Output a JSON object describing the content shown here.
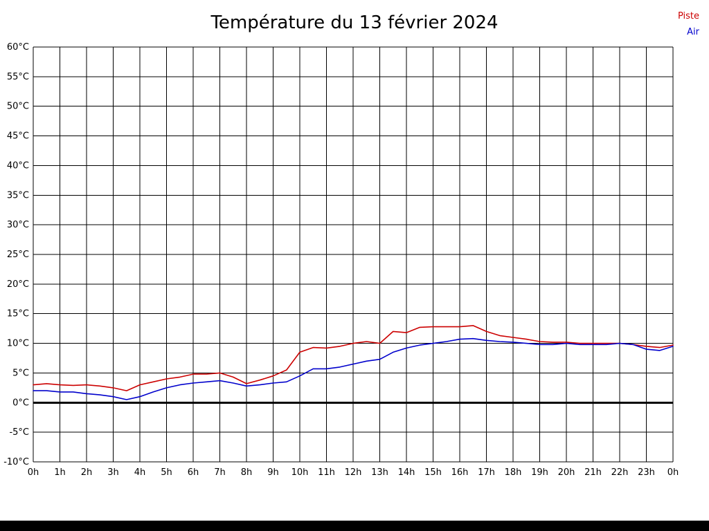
{
  "title": "Température du 13 février 2024",
  "legend": [
    {
      "label": "Piste",
      "color": "#cc0000"
    },
    {
      "label": "Air",
      "color": "#0000cc"
    }
  ],
  "chart_data": {
    "type": "line",
    "title": "Température du 13 février 2024",
    "xlabel": "",
    "ylabel": "",
    "x_unit": "hours",
    "xlim": [
      0,
      24
    ],
    "ylim": [
      -10,
      60
    ],
    "x_tick_step": 1,
    "y_tick_step": 5,
    "grid": true,
    "zero_line": true,
    "legend_position": "top-right",
    "x_tick_labels": [
      "0h",
      "1h",
      "2h",
      "3h",
      "4h",
      "5h",
      "6h",
      "7h",
      "8h",
      "9h",
      "10h",
      "11h",
      "12h",
      "13h",
      "14h",
      "15h",
      "16h",
      "17h",
      "18h",
      "19h",
      "20h",
      "21h",
      "22h",
      "23h",
      "0h"
    ],
    "y_tick_labels": [
      "60°C",
      "55°C",
      "50°C",
      "45°C",
      "40°C",
      "35°C",
      "30°C",
      "25°C",
      "20°C",
      "15°C",
      "10°C",
      "5°C",
      "0°C",
      "-5°C",
      "-10°C"
    ],
    "x": [
      0,
      0.5,
      1,
      1.5,
      2,
      2.5,
      3,
      3.5,
      4,
      4.5,
      5,
      5.5,
      6,
      6.5,
      7,
      7.5,
      8,
      8.5,
      9,
      9.5,
      10,
      10.5,
      11,
      11.5,
      12,
      12.5,
      13,
      13.5,
      14,
      14.5,
      15,
      15.5,
      16,
      16.5,
      17,
      17.5,
      18,
      18.5,
      19,
      19.5,
      20,
      20.5,
      21,
      21.5,
      22,
      22.5,
      23,
      23.5,
      24
    ],
    "series": [
      {
        "name": "Piste",
        "color": "#cc0000",
        "values": [
          3.0,
          3.2,
          3.0,
          2.9,
          3.0,
          2.8,
          2.5,
          2.0,
          3.0,
          3.5,
          4.0,
          4.3,
          4.8,
          4.8,
          5.0,
          4.3,
          3.2,
          3.8,
          4.5,
          5.5,
          8.5,
          9.3,
          9.2,
          9.5,
          10.0,
          10.3,
          10.0,
          12.0,
          11.8,
          12.7,
          12.8,
          12.8,
          12.8,
          13.0,
          12.0,
          11.3,
          11.0,
          10.7,
          10.3,
          10.2,
          10.2,
          10.0,
          10.0,
          10.0,
          10.0,
          9.8,
          9.5,
          9.3,
          9.7
        ]
      },
      {
        "name": "Air",
        "color": "#0000cc",
        "values": [
          2.0,
          2.0,
          1.8,
          1.8,
          1.5,
          1.3,
          1.0,
          0.5,
          1.0,
          1.8,
          2.5,
          3.0,
          3.3,
          3.5,
          3.7,
          3.3,
          2.8,
          3.0,
          3.3,
          3.5,
          4.5,
          5.7,
          5.7,
          6.0,
          6.5,
          7.0,
          7.3,
          8.5,
          9.2,
          9.7,
          10.0,
          10.3,
          10.7,
          10.8,
          10.5,
          10.3,
          10.2,
          10.0,
          9.8,
          9.8,
          10.0,
          9.8,
          9.8,
          9.8,
          10.0,
          9.8,
          9.0,
          8.8,
          9.5
        ]
      }
    ]
  }
}
